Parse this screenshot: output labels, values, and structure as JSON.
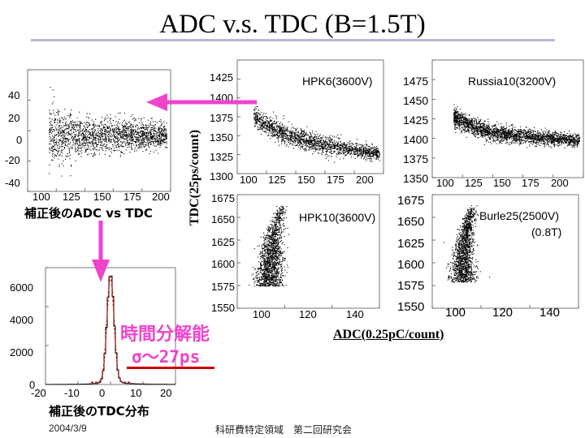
{
  "title": "ADC v.s. TDC (B=1.5T)",
  "footer": {
    "date": "2004/3/9",
    "conference": "科研費特定領域　第二回研究会"
  },
  "annotations": {
    "corrected_adc_vs_tdc": "補正後のADC vs TDC",
    "corrected_tdc_dist": "補正後のTDC分布",
    "time_resolution_line1": "時間分解能",
    "time_resolution_line2": "σ～27ps",
    "y_axis_label": "TDC(25ps/count)",
    "x_axis_label": "ADC(0.25pC/count)"
  },
  "colors": {
    "arrow": "#ee44cc",
    "highlight": "#ee44cc",
    "underline": "#cc0000",
    "title_line": "#b8b8dc",
    "fit_curve": "#cc0000"
  },
  "chart_data": [
    {
      "type": "scatter",
      "id": "corrected",
      "caption": "補正後のADC vs TDC",
      "xticks": [
        "100",
        "125",
        "150",
        "175",
        "200"
      ],
      "yticks": [
        "40",
        "20",
        "0",
        "-20",
        "-40"
      ],
      "xlim": [
        85,
        210
      ],
      "ylim": [
        -45,
        45
      ]
    },
    {
      "type": "scatter",
      "id": "hpk6",
      "name": "HPK6(3600V)",
      "xticks": [
        "100",
        "125",
        "150",
        "175",
        "200"
      ],
      "yticks": [
        "1425",
        "1400",
        "1375",
        "1350",
        "1325",
        "1300"
      ],
      "xlim": [
        90,
        210
      ],
      "ylim": [
        1295,
        1440
      ]
    },
    {
      "type": "scatter",
      "id": "russia10",
      "name": "Russia10(3200V)",
      "xticks": [
        "100",
        "125",
        "150",
        "175",
        "200"
      ],
      "yticks": [
        "1475",
        "1450",
        "1425",
        "1400",
        "1375",
        "1350"
      ],
      "xlim": [
        90,
        210
      ],
      "ylim": [
        1345,
        1490
      ]
    },
    {
      "type": "scatter",
      "id": "hpk10",
      "name": "HPK10(3600V)",
      "xticks": [
        "100",
        "120",
        "140"
      ],
      "yticks": [
        "1675",
        "1650",
        "1625",
        "1600",
        "1575",
        "1550"
      ],
      "xlim": [
        90,
        155
      ],
      "ylim": [
        1545,
        1680
      ]
    },
    {
      "type": "scatter",
      "id": "burle25",
      "name": "Burle25(2500V)",
      "name_line2": "(0.8T)",
      "xticks": [
        "100",
        "120",
        "140"
      ],
      "yticks": [
        "1675",
        "1650",
        "1625",
        "1600",
        "1575",
        "1550"
      ],
      "xlim": [
        90,
        155
      ],
      "ylim": [
        1545,
        1680
      ]
    },
    {
      "type": "bar",
      "id": "tdc_hist",
      "caption": "補正後のTDC分布",
      "xticks": [
        "-20",
        "-10",
        "0",
        "10",
        "20"
      ],
      "yticks": [
        "6000",
        "4000",
        "2000",
        "0"
      ],
      "xlim": [
        -20,
        20
      ],
      "ylim": [
        0,
        6500
      ],
      "sigma": "σ～27ps"
    }
  ]
}
